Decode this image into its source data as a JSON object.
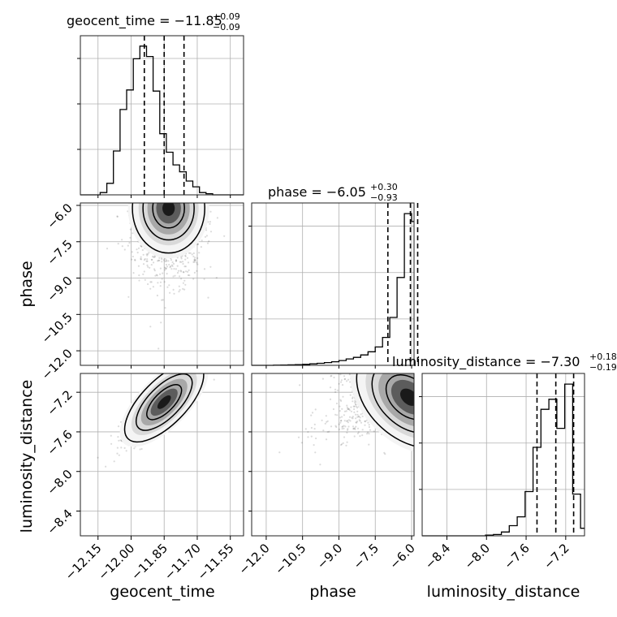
{
  "chart_data": {
    "type": "corner",
    "parameters": [
      "geocent_time",
      "phase",
      "luminosity_distance"
    ],
    "ranges": {
      "geocent_time": [
        -12.23,
        -11.49
      ],
      "phase": [
        -12.6,
        -5.9
      ],
      "luminosity_distance": [
        -8.65,
        -7.01
      ]
    },
    "ticks": {
      "geocent_time": {
        "values": [
          -12.15,
          -12.0,
          -11.85,
          -11.7,
          -11.55
        ],
        "labels": [
          "−12.15",
          "−12.00",
          "−11.85",
          "−11.70",
          "−11.55"
        ]
      },
      "phase": {
        "values": [
          -12.0,
          -10.5,
          -9.0,
          -7.5,
          -6.0
        ],
        "labels": [
          "−12.0",
          "−10.5",
          "−9.0",
          "−7.5",
          "−6.0"
        ]
      },
      "luminosity_distance": {
        "values": [
          -8.4,
          -8.0,
          -7.6,
          -7.2
        ],
        "labels": [
          "−8.4",
          "−8.0",
          "−7.6",
          "−7.2"
        ]
      }
    },
    "titles": [
      {
        "param": "geocent_time",
        "text": "geocent_time = −11.85",
        "plus": "+0.09",
        "minus": "−0.09"
      },
      {
        "param": "phase",
        "text": "phase = −6.05",
        "plus": "+0.30",
        "minus": "−0.93"
      },
      {
        "param": "luminosity_distance",
        "text": "luminosity_distance = −7.30",
        "plus": "+0.18",
        "minus": "−0.19"
      }
    ],
    "histograms": {
      "geocent_time": {
        "edges": [
          -12.23,
          -12.2,
          -12.17,
          -12.14,
          -12.11,
          -12.08,
          -12.05,
          -12.02,
          -11.99,
          -11.96,
          -11.93,
          -11.9,
          -11.87,
          -11.84,
          -11.81,
          -11.78,
          -11.75,
          -11.72,
          -11.69,
          -11.66,
          -11.63,
          -11.6,
          -11.57,
          -11.54,
          -11.51,
          -11.49
        ],
        "counts": [
          0,
          0,
          0,
          0.2,
          1,
          3.8,
          7.4,
          9.1,
          11.8,
          12.9,
          12.0,
          9.0,
          5.3,
          3.7,
          2.6,
          2.0,
          1.2,
          0.7,
          0.2,
          0.1,
          0,
          0,
          0,
          0,
          0
        ],
        "quantiles": [
          -11.94,
          -11.85,
          -11.76
        ]
      },
      "phase": {
        "edges": [
          -12.6,
          -12.3,
          -12.0,
          -11.7,
          -11.4,
          -11.1,
          -10.8,
          -10.5,
          -10.2,
          -9.9,
          -9.6,
          -9.3,
          -9.0,
          -8.7,
          -8.4,
          -8.1,
          -7.8,
          -7.5,
          -7.2,
          -6.9,
          -6.6,
          -6.3,
          -6.0,
          -5.9
        ],
        "counts": [
          0,
          0,
          0,
          0.02,
          0.04,
          0.06,
          0.08,
          0.12,
          0.18,
          0.25,
          0.35,
          0.45,
          0.6,
          0.8,
          1.0,
          1.3,
          1.7,
          2.3,
          3.5,
          6.0,
          11.0,
          19.0,
          18.0
        ],
        "quantiles": [
          -6.98,
          -6.05,
          -5.75
        ]
      },
      "luminosity_distance": {
        "edges": [
          -8.65,
          -8.57,
          -8.49,
          -8.41,
          -8.33,
          -8.25,
          -8.17,
          -8.09,
          -8.01,
          -7.93,
          -7.85,
          -7.77,
          -7.69,
          -7.61,
          -7.53,
          -7.45,
          -7.37,
          -7.29,
          -7.21,
          -7.13,
          -7.05,
          -7.01
        ],
        "counts": [
          0,
          0,
          0,
          0,
          0,
          0,
          0,
          0,
          0.05,
          0.1,
          0.3,
          0.8,
          1.5,
          3.5,
          7.0,
          10.0,
          10.8,
          8.5,
          12.0,
          3.3,
          0.6
        ],
        "quantiles": [
          -7.49,
          -7.3,
          -7.12
        ]
      }
    },
    "pairs": [
      {
        "x": "geocent_time",
        "y": "phase",
        "center": [
          -11.83,
          -6.12
        ],
        "spread": [
          0.08,
          0.9
        ]
      },
      {
        "x": "geocent_time",
        "y": "luminosity_distance",
        "center": [
          -11.85,
          -7.3
        ],
        "spread": [
          0.08,
          0.18
        ],
        "correlation": 0.85
      },
      {
        "x": "phase",
        "y": "luminosity_distance",
        "center": [
          -6.1,
          -7.25
        ],
        "spread": [
          0.9,
          0.2
        ],
        "correlation": -0.6
      }
    ]
  }
}
